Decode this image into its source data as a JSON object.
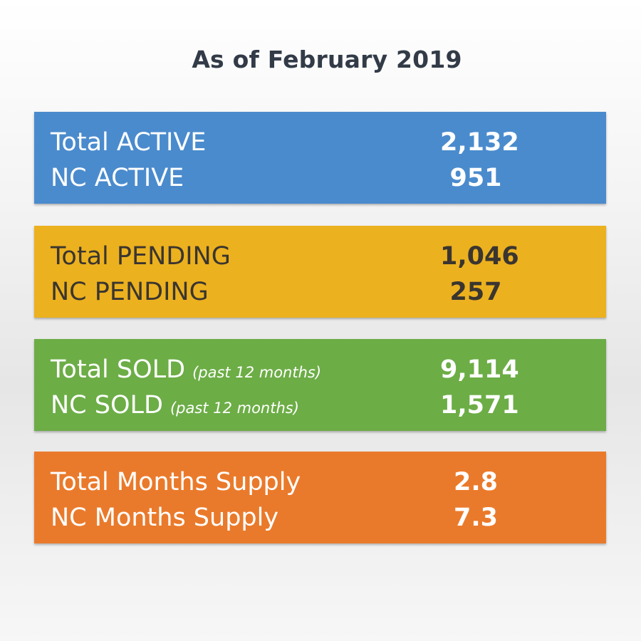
{
  "title": "As of February 2019",
  "colors": {
    "active": "#4a8bcd",
    "pending": "#ecb11e",
    "sold": "#6cad46",
    "supply": "#ea7a2b",
    "title": "#323b47"
  },
  "panels": {
    "active": {
      "row1": {
        "label": "Total ACTIVE",
        "value": "2,132"
      },
      "row2": {
        "label": "NC ACTIVE",
        "value": "951"
      }
    },
    "pending": {
      "row1": {
        "label": "Total PENDING",
        "value": "1,046"
      },
      "row2": {
        "label": "NC PENDING",
        "value": "257"
      }
    },
    "sold": {
      "row1": {
        "label": "Total SOLD",
        "note": "(past 12 months)",
        "value": "9,114"
      },
      "row2": {
        "label": "NC SOLD",
        "note": "(past 12 months)",
        "value": "1,571"
      }
    },
    "supply": {
      "row1": {
        "label": "Total Months Supply",
        "value": "2.8"
      },
      "row2": {
        "label": "NC Months Supply",
        "value": "7.3"
      }
    }
  }
}
